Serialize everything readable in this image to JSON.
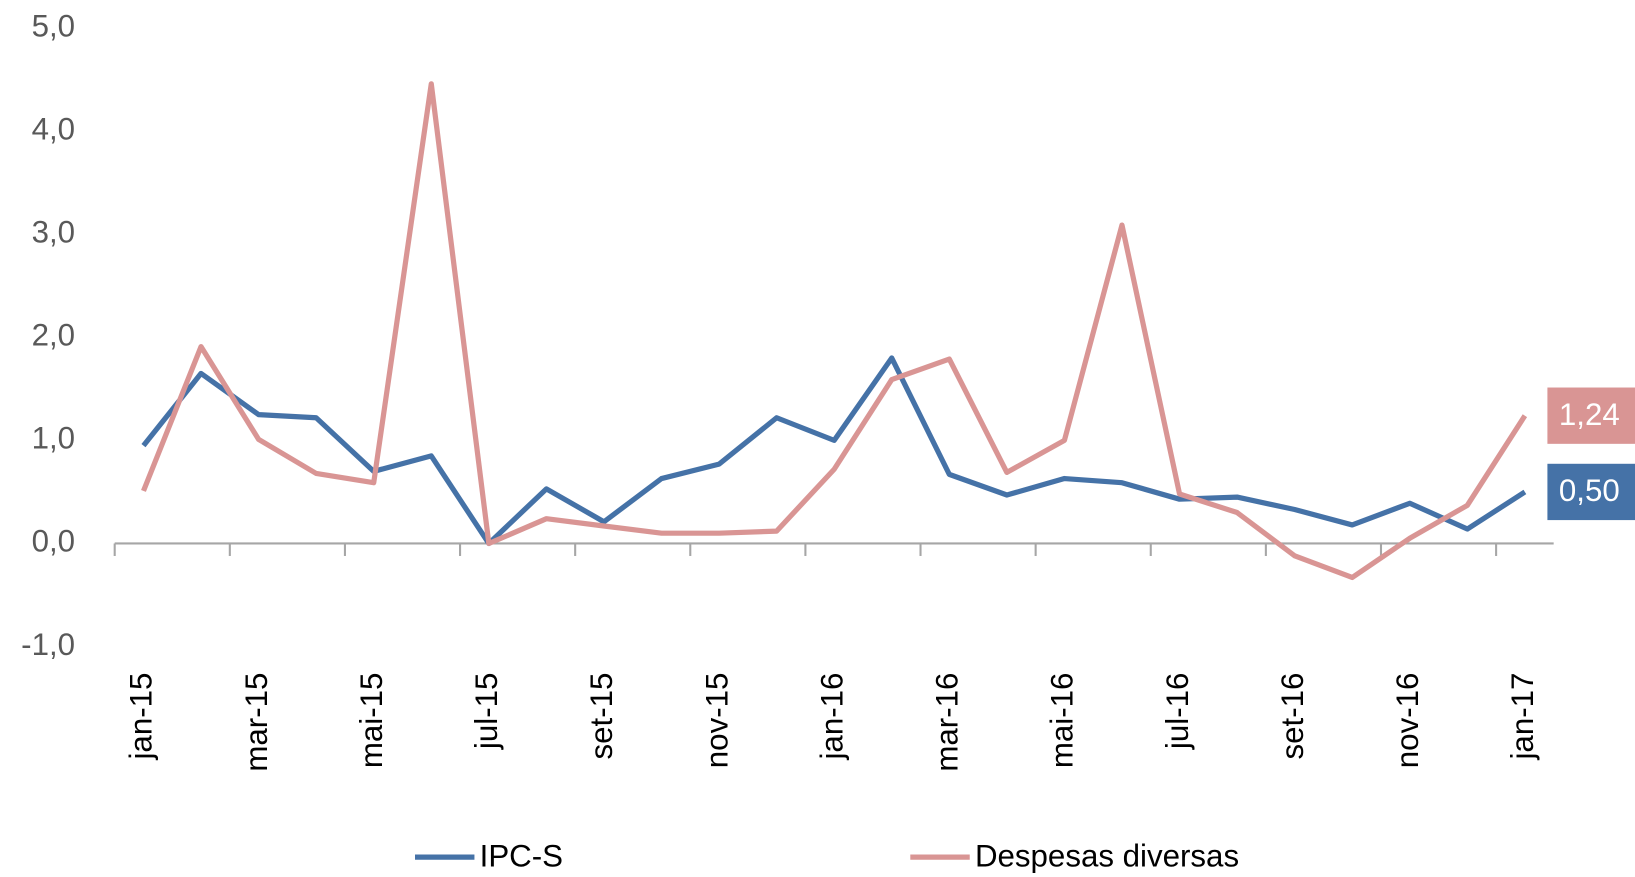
{
  "chart_data": {
    "type": "line",
    "categories": [
      "jan-15",
      null,
      "mar-15",
      null,
      "mai-15",
      null,
      "jul-15",
      null,
      "set-15",
      null,
      "nov-15",
      null,
      "jan-16",
      null,
      "mar-16",
      null,
      "mai-16",
      null,
      "jul-16",
      null,
      "set-16",
      null,
      "nov-16",
      null,
      "jan-17"
    ],
    "series": [
      {
        "name": "IPC-S",
        "color": "#4572a7",
        "values": [
          0.95,
          1.65,
          1.25,
          1.22,
          0.7,
          0.85,
          0.0,
          0.53,
          0.21,
          0.63,
          0.77,
          1.22,
          1.0,
          1.8,
          0.67,
          0.47,
          0.63,
          0.59,
          0.43,
          0.45,
          0.33,
          0.18,
          0.39,
          0.14,
          0.5
        ],
        "value_labels": [
          null,
          null,
          null,
          null,
          null,
          null,
          null,
          null,
          null,
          null,
          null,
          null,
          null,
          null,
          null,
          null,
          null,
          null,
          null,
          null,
          null,
          null,
          null,
          null,
          "0,50"
        ]
      },
      {
        "name": "Despesas diversas",
        "color": "#d99594",
        "values": [
          0.51,
          1.91,
          1.01,
          0.68,
          0.59,
          4.46,
          0.0,
          0.24,
          0.17,
          0.1,
          0.1,
          0.12,
          0.72,
          1.59,
          1.79,
          0.69,
          1.0,
          3.09,
          0.48,
          0.3,
          -0.12,
          -0.33,
          0.05,
          0.37,
          1.24
        ],
        "value_labels": [
          null,
          null,
          null,
          null,
          null,
          null,
          null,
          null,
          null,
          null,
          null,
          null,
          null,
          null,
          null,
          null,
          null,
          null,
          null,
          null,
          null,
          null,
          null,
          null,
          "1,24"
        ]
      }
    ],
    "ylim": [
      -1,
      5
    ],
    "yticks": [
      {
        "value": -1,
        "label": "-1,0"
      },
      {
        "value": 0,
        "label": "0,0"
      },
      {
        "value": 1,
        "label": "1,0"
      },
      {
        "value": 2,
        "label": "2,0"
      },
      {
        "value": 3,
        "label": "3,0"
      },
      {
        "value": 4,
        "label": "4,0"
      },
      {
        "value": 5,
        "label": "5,0"
      }
    ],
    "grid": false,
    "legend": "bottom"
  }
}
